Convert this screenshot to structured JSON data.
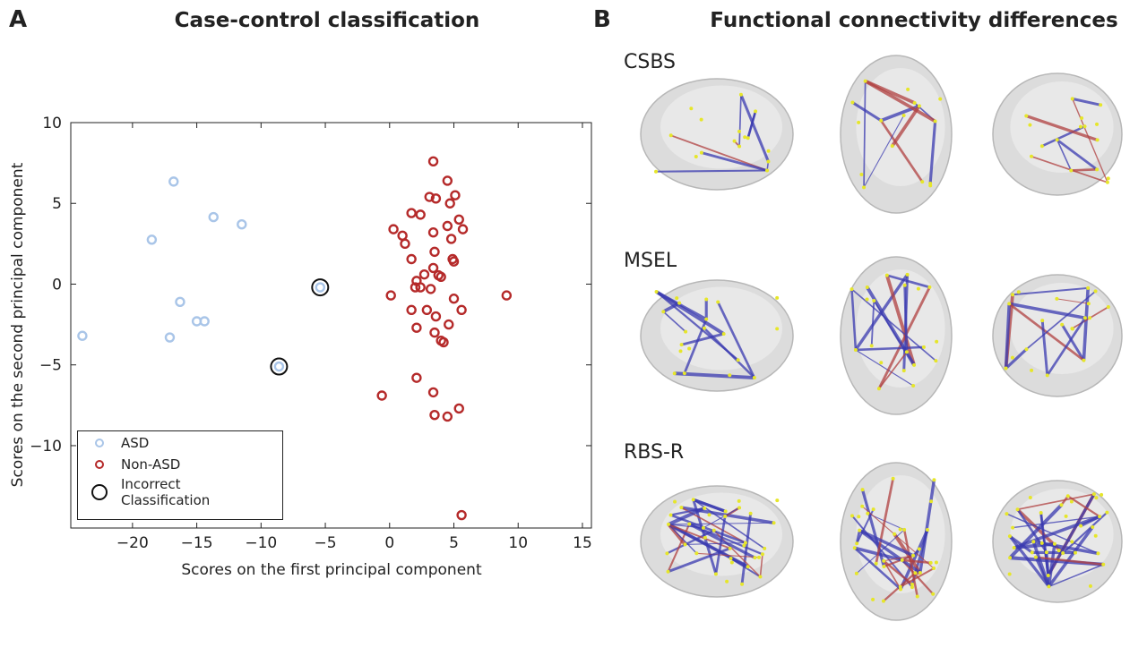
{
  "panel_labels": [
    "A",
    "B"
  ],
  "chart_data": {
    "type": "scatter",
    "title": "Case-control classification",
    "x_label": "Scores on the first principal component",
    "y_label": "Scores on the second principal component",
    "xlim": [
      -24.8,
      15.7
    ],
    "ylim": [
      -15.1,
      10
    ],
    "xticks": [
      {
        "value": -20,
        "label": "−20"
      },
      {
        "value": -15,
        "label": "−15"
      },
      {
        "value": -10,
        "label": "−10"
      },
      {
        "value": -5,
        "label": "−5"
      },
      0,
      5,
      10,
      15
    ],
    "yticks": [
      {
        "value": -10,
        "label": "−10"
      },
      {
        "value": -5,
        "label": "−5"
      },
      0,
      5,
      10
    ],
    "grid": false,
    "legend": "lower left",
    "series": [
      {
        "name": "ASD",
        "color": "#a9c5e8",
        "x": [
          -16.8,
          -13.7,
          -11.5,
          -18.5,
          -16.3,
          -15.0,
          -14.4,
          -17.1,
          -23.9,
          -5.4,
          -8.6
        ],
        "y": [
          6.35,
          4.15,
          3.7,
          2.75,
          -1.1,
          -2.3,
          -2.3,
          -3.3,
          -3.2,
          -0.2,
          -5.1
        ]
      },
      {
        "name": "Non-ASD",
        "color": "#b52a2a",
        "x": [
          3.4,
          4.5,
          3.1,
          3.6,
          5.1,
          4.7,
          1.7,
          2.4,
          5.4,
          4.5,
          0.3,
          5.7,
          3.4,
          1.0,
          1.2,
          4.8,
          3.5,
          1.7,
          4.9,
          5.0,
          3.4,
          2.7,
          3.8,
          2.1,
          4.0,
          2.0,
          2.4,
          3.2,
          0.1,
          9.1,
          5.6,
          1.7,
          2.9,
          3.6,
          5.0,
          2.1,
          4.6,
          3.5,
          4.0,
          4.2,
          2.1,
          3.4,
          -0.6,
          5.4,
          3.5,
          4.5,
          5.6
        ],
        "y": [
          7.6,
          6.4,
          5.4,
          5.3,
          5.5,
          5.0,
          4.4,
          4.3,
          4.0,
          3.6,
          3.4,
          3.4,
          3.2,
          3.0,
          2.5,
          2.8,
          2.0,
          1.55,
          1.55,
          1.4,
          1.0,
          0.6,
          0.55,
          0.2,
          0.45,
          -0.2,
          -0.2,
          -0.3,
          -0.7,
          -0.7,
          -1.6,
          -1.6,
          -1.6,
          -2.0,
          -0.9,
          -2.7,
          -2.5,
          -3.0,
          -3.5,
          -3.6,
          -5.8,
          -6.7,
          -6.9,
          -7.7,
          -8.1,
          -8.2,
          -14.3
        ]
      },
      {
        "name": "Incorrect Classification",
        "color": "#111111",
        "x": [
          -5.4,
          -8.6
        ],
        "y": [
          -0.2,
          -5.1
        ]
      }
    ]
  },
  "panel_b": {
    "title": "Functional connectivity differences",
    "rows": [
      "CSBS",
      "MSEL",
      "RBS-R"
    ]
  }
}
